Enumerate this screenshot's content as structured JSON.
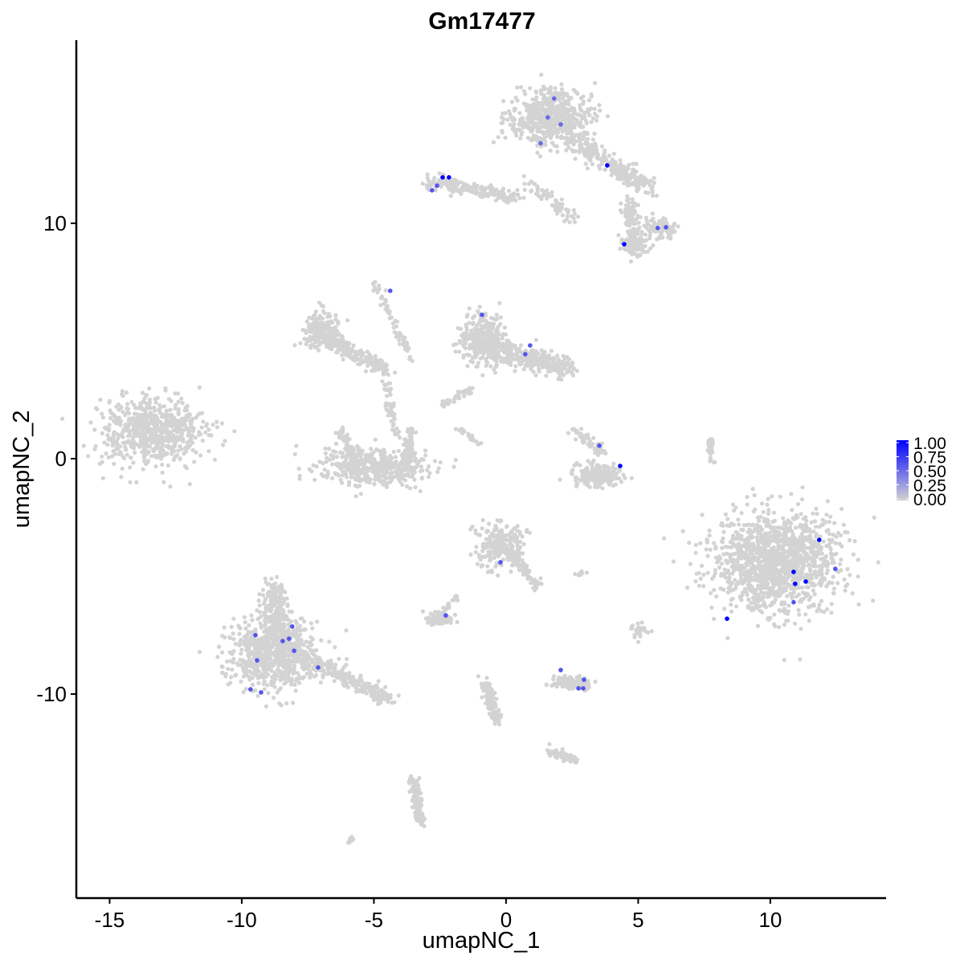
{
  "chart_data": {
    "type": "scatter",
    "title": "Gm17477",
    "xlabel": "umapNC_1",
    "ylabel": "umapNC_2",
    "xlim": [
      -16.26,
      14.38
    ],
    "ylim": [
      -18.67,
      17.78
    ],
    "x_ticks": [
      -15,
      -10,
      -5,
      0,
      5,
      10
    ],
    "y_ticks": [
      -10,
      0,
      10
    ],
    "grid": false,
    "legend": {
      "placement": "right",
      "type": "colorbar",
      "ticks": [
        "1.00",
        "0.75",
        "0.50",
        "0.25",
        "0.00"
      ],
      "range": [
        0,
        1
      ]
    },
    "colors": {
      "low": "#d3d3d3",
      "high": "#0000ff"
    },
    "background_clusters": [
      {
        "shape": "blob",
        "cx": -13.4,
        "cy": 1.2,
        "sx": 1.3,
        "sy": 0.95,
        "n": 650
      },
      {
        "shape": "blob",
        "cx": -5.0,
        "cy": -0.4,
        "sx": 1.4,
        "sy": 0.55,
        "n": 420
      },
      {
        "shape": "segment",
        "from": [
          -6.3,
          1.3
        ],
        "to": [
          -5.6,
          -0.6
        ],
        "w": 0.2,
        "n": 80
      },
      {
        "shape": "segment",
        "from": [
          -3.6,
          1.3
        ],
        "to": [
          -3.8,
          -0.6
        ],
        "w": 0.2,
        "n": 80
      },
      {
        "shape": "blob",
        "cx": -7.0,
        "cy": 5.5,
        "sx": 0.5,
        "sy": 0.45,
        "n": 180
      },
      {
        "shape": "segment",
        "from": [
          -7.0,
          5.2
        ],
        "to": [
          -4.6,
          3.8
        ],
        "w": 0.3,
        "n": 200
      },
      {
        "shape": "segment",
        "from": [
          -5.0,
          7.5
        ],
        "to": [
          -3.5,
          4.0
        ],
        "w": 0.15,
        "n": 60
      },
      {
        "shape": "segment",
        "from": [
          -4.6,
          3.6
        ],
        "to": [
          -4.2,
          1.0
        ],
        "w": 0.15,
        "n": 50
      },
      {
        "shape": "blob",
        "cx": 1.7,
        "cy": 14.5,
        "sx": 1.0,
        "sy": 0.8,
        "n": 600
      },
      {
        "shape": "segment",
        "from": [
          2.4,
          13.6
        ],
        "to": [
          5.4,
          11.5
        ],
        "w": 0.4,
        "n": 250
      },
      {
        "shape": "segment",
        "from": [
          4.6,
          11.0
        ],
        "to": [
          4.9,
          9.2
        ],
        "w": 0.3,
        "n": 120
      },
      {
        "shape": "blob",
        "cx": 5.8,
        "cy": 9.8,
        "sx": 0.35,
        "sy": 0.3,
        "n": 80
      },
      {
        "shape": "blob",
        "cx": 4.8,
        "cy": 9.0,
        "sx": 0.35,
        "sy": 0.25,
        "n": 80
      },
      {
        "shape": "segment",
        "from": [
          -3.0,
          11.8
        ],
        "to": [
          0.4,
          11.1
        ],
        "w": 0.3,
        "n": 200
      },
      {
        "shape": "segment",
        "from": [
          0.8,
          11.8
        ],
        "to": [
          2.6,
          10.2
        ],
        "w": 0.3,
        "n": 60
      },
      {
        "shape": "blob",
        "cx": -0.9,
        "cy": 5.0,
        "sx": 0.55,
        "sy": 0.7,
        "n": 300
      },
      {
        "shape": "segment",
        "from": [
          -0.6,
          4.7
        ],
        "to": [
          2.4,
          3.8
        ],
        "w": 0.5,
        "n": 300
      },
      {
        "shape": "segment",
        "from": [
          -1.2,
          3.0
        ],
        "to": [
          -2.4,
          2.3
        ],
        "w": 0.15,
        "n": 40
      },
      {
        "shape": "segment",
        "from": [
          -1.8,
          1.3
        ],
        "to": [
          -1.0,
          0.6
        ],
        "w": 0.1,
        "n": 25
      },
      {
        "shape": "blob",
        "cx": 3.5,
        "cy": -0.7,
        "sx": 0.6,
        "sy": 0.3,
        "n": 200
      },
      {
        "shape": "segment",
        "from": [
          2.5,
          1.3
        ],
        "to": [
          3.6,
          0.2
        ],
        "w": 0.2,
        "n": 60
      },
      {
        "shape": "blob",
        "cx": 10.2,
        "cy": -4.4,
        "sx": 1.6,
        "sy": 1.35,
        "n": 1300
      },
      {
        "shape": "segment",
        "from": [
          7.7,
          0.9
        ],
        "to": [
          7.8,
          -0.2
        ],
        "w": 0.1,
        "n": 30
      },
      {
        "shape": "blob",
        "cx": -8.8,
        "cy": -8.3,
        "sx": 1.1,
        "sy": 1.0,
        "n": 700
      },
      {
        "shape": "segment",
        "from": [
          -8.8,
          -5.4
        ],
        "to": [
          -8.6,
          -7.5
        ],
        "w": 0.5,
        "n": 200
      },
      {
        "shape": "segment",
        "from": [
          -7.5,
          -8.5
        ],
        "to": [
          -4.3,
          -10.3
        ],
        "w": 0.35,
        "n": 250
      },
      {
        "shape": "blob",
        "cx": -0.3,
        "cy": -3.7,
        "sx": 0.55,
        "sy": 0.6,
        "n": 250
      },
      {
        "shape": "segment",
        "from": [
          0.2,
          -4.0
        ],
        "to": [
          1.2,
          -5.5
        ],
        "w": 0.2,
        "n": 80
      },
      {
        "shape": "blob",
        "cx": -2.5,
        "cy": -6.8,
        "sx": 0.3,
        "sy": 0.2,
        "n": 80
      },
      {
        "shape": "segment",
        "from": [
          -1.8,
          -5.8
        ],
        "to": [
          -2.5,
          -6.5
        ],
        "w": 0.1,
        "n": 20
      },
      {
        "shape": "blob",
        "cx": 2.5,
        "cy": -9.5,
        "sx": 0.5,
        "sy": 0.2,
        "n": 120
      },
      {
        "shape": "segment",
        "from": [
          -0.8,
          -9.5
        ],
        "to": [
          -0.3,
          -11.2
        ],
        "w": 0.2,
        "n": 120
      },
      {
        "shape": "segment",
        "from": [
          1.7,
          -12.4
        ],
        "to": [
          2.6,
          -12.8
        ],
        "w": 0.2,
        "n": 60
      },
      {
        "shape": "segment",
        "from": [
          -3.5,
          -13.5
        ],
        "to": [
          -3.2,
          -15.5
        ],
        "w": 0.2,
        "n": 120
      },
      {
        "shape": "blob",
        "cx": 5.0,
        "cy": -7.3,
        "sx": 0.2,
        "sy": 0.2,
        "n": 30
      },
      {
        "shape": "segment",
        "from": [
          2.6,
          -4.9
        ],
        "to": [
          3.0,
          -4.9
        ],
        "w": 0.08,
        "n": 12
      },
      {
        "shape": "segment",
        "from": [
          -6.0,
          -16.3
        ],
        "to": [
          -5.8,
          -16.1
        ],
        "w": 0.08,
        "n": 10
      }
    ],
    "expressed_points": [
      {
        "x": 1.82,
        "y": 15.3,
        "v": 0.5
      },
      {
        "x": 1.58,
        "y": 14.5,
        "v": 0.5
      },
      {
        "x": 2.07,
        "y": 14.2,
        "v": 0.5
      },
      {
        "x": 1.31,
        "y": 13.4,
        "v": 0.5
      },
      {
        "x": 3.83,
        "y": 12.46,
        "v": 1.0
      },
      {
        "x": -2.4,
        "y": 11.95,
        "v": 1.0
      },
      {
        "x": -2.16,
        "y": 11.95,
        "v": 1.0
      },
      {
        "x": -2.61,
        "y": 11.6,
        "v": 0.6
      },
      {
        "x": -2.8,
        "y": 11.4,
        "v": 0.6
      },
      {
        "x": 4.47,
        "y": 9.11,
        "v": 1.0
      },
      {
        "x": 5.74,
        "y": 9.8,
        "v": 0.6
      },
      {
        "x": 6.05,
        "y": 9.83,
        "v": 0.6
      },
      {
        "x": -4.38,
        "y": 7.13,
        "v": 0.6
      },
      {
        "x": -0.91,
        "y": 6.11,
        "v": 0.6
      },
      {
        "x": 0.91,
        "y": 4.81,
        "v": 0.6
      },
      {
        "x": 0.73,
        "y": 4.44,
        "v": 0.6
      },
      {
        "x": 3.53,
        "y": 0.55,
        "v": 0.6
      },
      {
        "x": 4.32,
        "y": -0.31,
        "v": 1.0
      },
      {
        "x": 11.85,
        "y": -3.45,
        "v": 1.0
      },
      {
        "x": 10.88,
        "y": -4.81,
        "v": 1.0
      },
      {
        "x": 10.94,
        "y": -5.32,
        "v": 1.0
      },
      {
        "x": 11.34,
        "y": -5.22,
        "v": 1.0
      },
      {
        "x": 12.46,
        "y": -4.68,
        "v": 0.6
      },
      {
        "x": 10.88,
        "y": -6.1,
        "v": 0.6
      },
      {
        "x": 8.36,
        "y": -6.8,
        "v": 1.0
      },
      {
        "x": -0.21,
        "y": -4.4,
        "v": 0.6
      },
      {
        "x": -2.28,
        "y": -6.66,
        "v": 0.6
      },
      {
        "x": -9.48,
        "y": -7.5,
        "v": 0.6
      },
      {
        "x": -8.09,
        "y": -7.13,
        "v": 0.6
      },
      {
        "x": -8.21,
        "y": -7.65,
        "v": 0.6
      },
      {
        "x": -8.45,
        "y": -7.75,
        "v": 0.6
      },
      {
        "x": -8.02,
        "y": -8.16,
        "v": 0.6
      },
      {
        "x": -9.42,
        "y": -8.57,
        "v": 0.6
      },
      {
        "x": -7.11,
        "y": -8.87,
        "v": 0.6
      },
      {
        "x": -9.67,
        "y": -9.8,
        "v": 0.6
      },
      {
        "x": -9.27,
        "y": -9.93,
        "v": 0.6
      },
      {
        "x": 2.07,
        "y": -8.98,
        "v": 0.6
      },
      {
        "x": 2.95,
        "y": -9.39,
        "v": 0.6
      },
      {
        "x": 2.74,
        "y": -9.76,
        "v": 0.6
      },
      {
        "x": 2.92,
        "y": -9.76,
        "v": 0.6
      }
    ]
  }
}
